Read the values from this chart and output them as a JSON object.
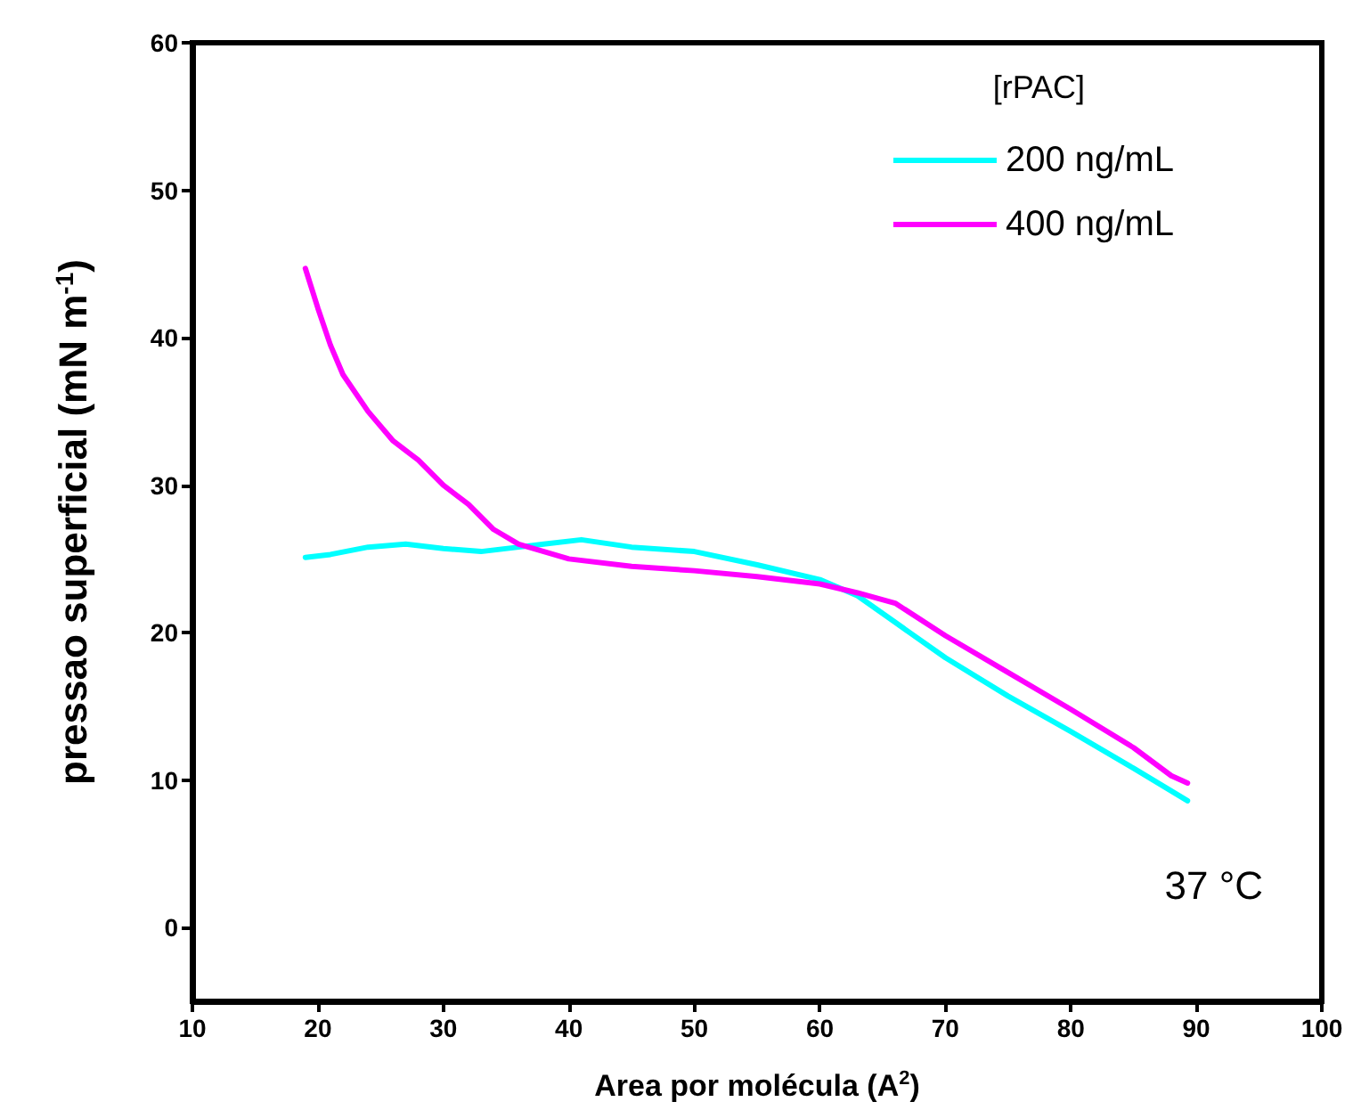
{
  "chart_data": {
    "type": "line",
    "xlabel": "Area por molécula (A$^{2}$)",
    "ylabel": "pressao superficial (mN m$^{-1}$)",
    "legend_title": "[rPAC]",
    "legend": "top right",
    "grid": false,
    "marker": "none",
    "line_style": "solid",
    "xlim": [
      10,
      100
    ],
    "xticks": [
      10,
      20,
      30,
      40,
      50,
      60,
      70,
      80,
      90,
      100
    ],
    "ylim": [
      -5,
      60
    ],
    "yticks": [
      0,
      10,
      20,
      30,
      40,
      50,
      60
    ],
    "annotations": [
      "37 °C"
    ],
    "series": [
      {
        "name": "200 ng/mL",
        "color": "#00ffff",
        "x": [
          19,
          21,
          24,
          27,
          30,
          33,
          36,
          38,
          41,
          45,
          50,
          55,
          60,
          63,
          66,
          70,
          75,
          80,
          85,
          89.3
        ],
        "values": [
          25.1,
          25.3,
          25.8,
          26,
          25.7,
          25.5,
          25.8,
          26,
          26.3,
          25.8,
          25.5,
          24.6,
          23.6,
          22.5,
          20.7,
          18.3,
          15.7,
          13.3,
          10.8,
          8.6
        ]
      },
      {
        "name": "400 ng/mL",
        "color": "#ff00ff",
        "x": [
          19,
          20,
          21,
          22,
          24,
          26,
          28,
          30,
          32,
          34,
          36,
          38,
          40,
          45,
          50,
          55,
          60,
          63,
          66,
          70,
          75,
          80,
          85,
          88,
          89.3
        ],
        "values": [
          44.7,
          42,
          39.5,
          37.5,
          35,
          33,
          31.7,
          30,
          28.7,
          27,
          26,
          25.5,
          25,
          24.5,
          24.2,
          23.8,
          23.3,
          22.7,
          22,
          19.8,
          17.3,
          14.8,
          12.2,
          10.3,
          9.8
        ]
      }
    ]
  }
}
